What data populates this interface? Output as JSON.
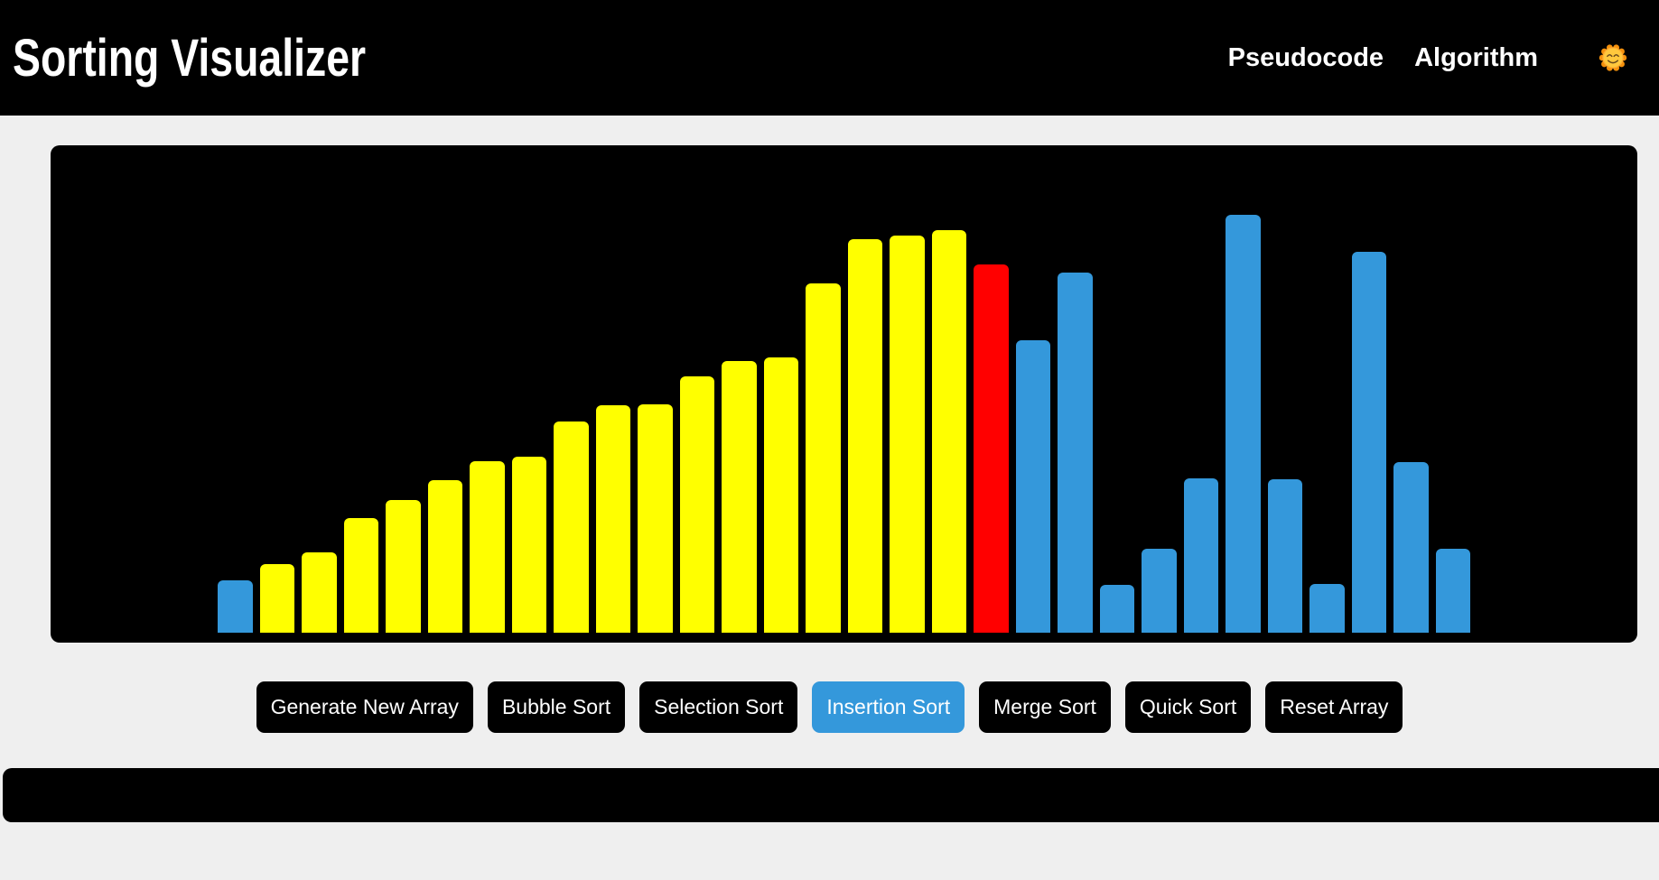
{
  "header": {
    "title": "Sorting Visualizer",
    "nav": [
      {
        "label": "Pseudocode"
      },
      {
        "label": "Algorithm"
      }
    ],
    "theme_toggle_icon": "sun-with-face-emoji"
  },
  "colors": {
    "page_background": "#efefef",
    "panel_black": "#000000",
    "accent_blue": "#3498db",
    "bar_yellow": "#ffff00",
    "bar_red": "#ff0000",
    "text_white": "#ffffff"
  },
  "chart_data": {
    "type": "bar",
    "orientation": "vertical",
    "bar_count": 30,
    "values": [
      58,
      76,
      89,
      127,
      147,
      169,
      190,
      195,
      234,
      252,
      253,
      284,
      301,
      305,
      387,
      436,
      440,
      446,
      408,
      324,
      399,
      53,
      93,
      171,
      463,
      170,
      54,
      422,
      189,
      93
    ],
    "colors": [
      "blue",
      "yellow",
      "yellow",
      "yellow",
      "yellow",
      "yellow",
      "yellow",
      "yellow",
      "yellow",
      "yellow",
      "yellow",
      "yellow",
      "yellow",
      "yellow",
      "yellow",
      "yellow",
      "yellow",
      "yellow",
      "red",
      "blue",
      "blue",
      "blue",
      "blue",
      "blue",
      "blue",
      "blue",
      "blue",
      "blue",
      "blue",
      "blue"
    ],
    "color_map": {
      "blue": "#3498db",
      "yellow": "#ffff00",
      "red": "#ff0000"
    },
    "legend": "off",
    "axes": "none",
    "background": "#000000"
  },
  "controls": {
    "buttons": [
      {
        "label": "Generate New Array",
        "active": false
      },
      {
        "label": "Bubble Sort",
        "active": false
      },
      {
        "label": "Selection Sort",
        "active": false
      },
      {
        "label": "Insertion Sort",
        "active": true
      },
      {
        "label": "Merge Sort",
        "active": false
      },
      {
        "label": "Quick Sort",
        "active": false
      },
      {
        "label": "Reset Array",
        "active": false
      }
    ]
  },
  "footer": {
    "text": ""
  }
}
